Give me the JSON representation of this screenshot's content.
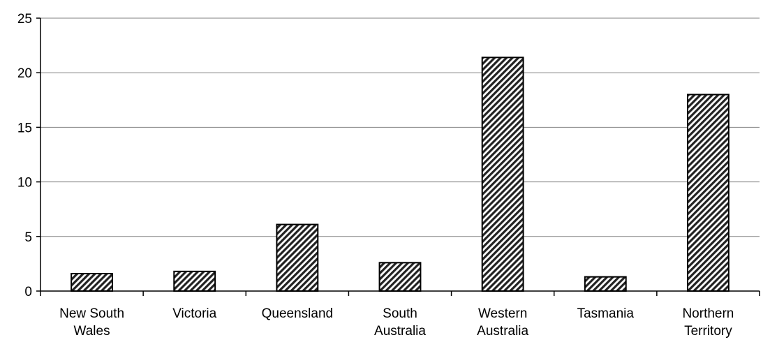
{
  "chart_data": {
    "type": "bar",
    "categories": [
      [
        "New South",
        "Wales"
      ],
      [
        "Victoria"
      ],
      [
        "Queensland"
      ],
      [
        "South",
        "Australia"
      ],
      [
        "Western",
        "Australia"
      ],
      [
        "Tasmania"
      ],
      [
        "Northern",
        "Territory"
      ]
    ],
    "values": [
      1.6,
      1.8,
      6.1,
      2.6,
      21.4,
      1.3,
      18.0
    ],
    "ylim": [
      0,
      25
    ],
    "yticks": [
      "0",
      "5",
      "10",
      "15",
      "20",
      "25"
    ],
    "grid": true,
    "legend": "none",
    "colors": {
      "bar_stroke": "#000000",
      "bar_hatch_dark": "#222222",
      "bar_hatch_light": "#ffffff",
      "gridline": "#808080",
      "axis": "#000000"
    }
  }
}
